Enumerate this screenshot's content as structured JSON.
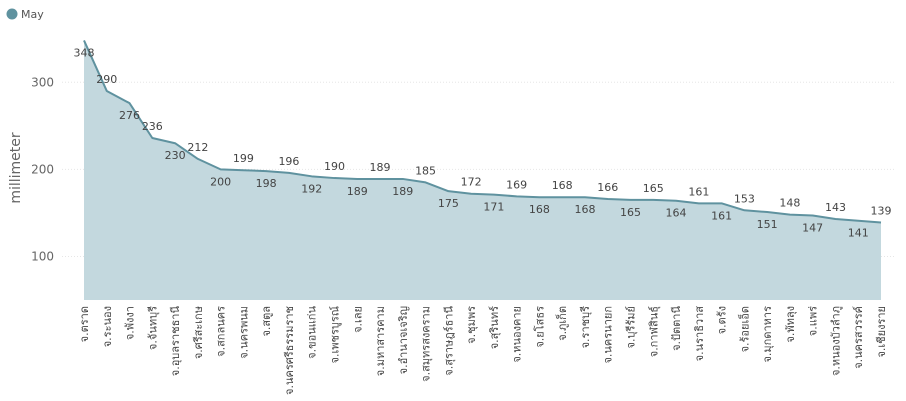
{
  "chart_data": {
    "type": "area",
    "legend": {
      "position": "top-left"
    },
    "ylabel": "millimeter",
    "xlabel": "",
    "ylim": [
      50,
      360
    ],
    "yticks": [
      100,
      200,
      300
    ],
    "grid": true,
    "colors": {
      "line": "#5f929f",
      "fill": "#c3d8de",
      "grid": "#e6e6e6",
      "text": "#444444"
    },
    "categories": [
      "จ.ตราด",
      "จ.ระนอง",
      "จ.พังงา",
      "จ.จันทบุรี",
      "จ.อุบลราชธานี",
      "จ.ศรีสะเกษ",
      "จ.สกลนคร",
      "จ.นครพนม",
      "จ.สตูล",
      "จ.นครศรีธรรมราช",
      "จ.ขอนแก่น",
      "จ.เพชรบูรณ์",
      "จ.เลย",
      "จ.มหาสารคาม",
      "จ.อำนาจเจริญ",
      "จ.สมุทรสงคราม",
      "จ.สุราษฎร์ธานี",
      "จ.ชุมพร",
      "จ.สุรินทร์",
      "จ.หนองคาย",
      "จ.ยโสธร",
      "จ.ภูเก็ต",
      "จ.ราชบุรี",
      "จ.นครนายก",
      "จ.บุรีรัมย์",
      "จ.กาฬสินธุ์",
      "จ.ปัตตานี",
      "จ.นราธิวาส",
      "จ.ตรัง",
      "จ.ร้อยเอ็ด",
      "จ.มุกดาหาร",
      "จ.พัทลุง",
      "จ.แพร่",
      "จ.หนองบัวลำภู",
      "จ.นครสวรรค์",
      "จ.เชียงราย"
    ],
    "series": [
      {
        "name": "May",
        "values": [
          348,
          290,
          276,
          236,
          230,
          212,
          200,
          199,
          198,
          196,
          192,
          190,
          189,
          189,
          189,
          185,
          175,
          172,
          171,
          169,
          168,
          168,
          168,
          166,
          165,
          165,
          164,
          161,
          161,
          153,
          151,
          148,
          147,
          143,
          141,
          139
        ]
      }
    ]
  }
}
